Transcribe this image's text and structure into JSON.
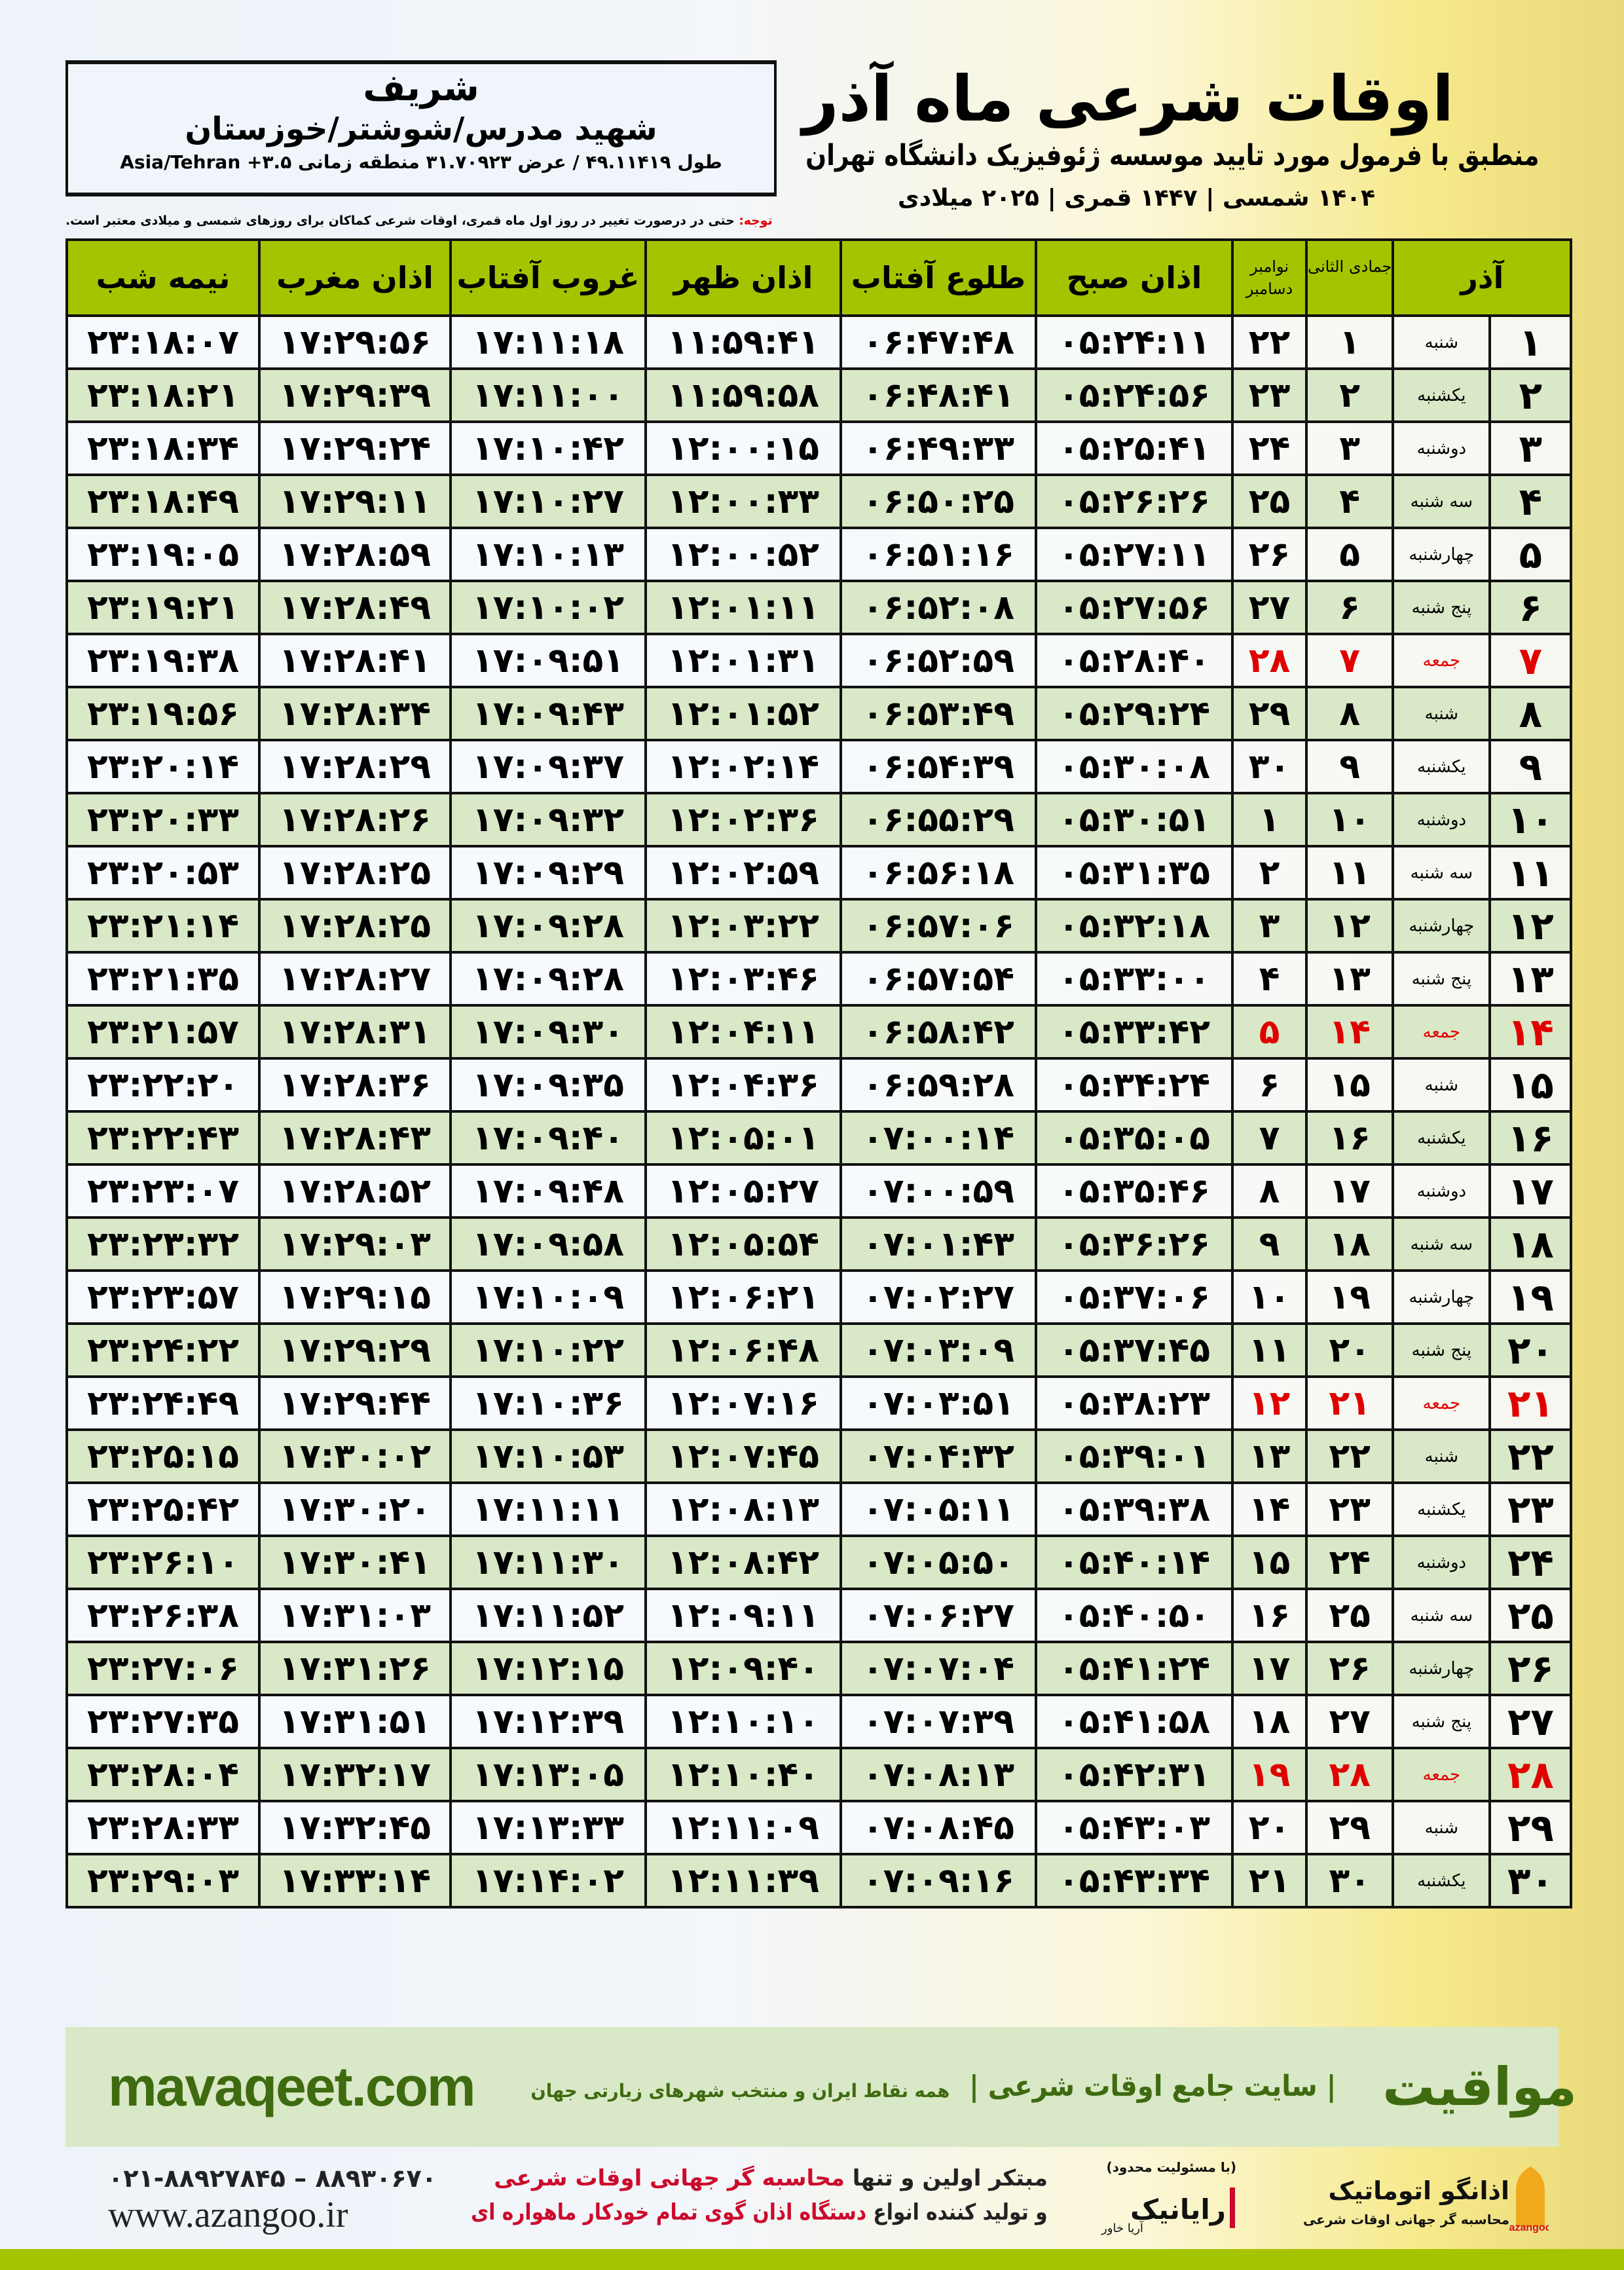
{
  "location": {
    "name": "شریف",
    "path": "شهید مدرس/شوشتر/خوزستان",
    "coords": "طول ۴۹.۱۱۴۱۹ / عرض ۳۱.۷۰۹۲۳ منطقه زمانی ۳.۵+ Asia/Tehran"
  },
  "header": {
    "title": "اوقات شرعی ماه آذر",
    "subtitle": "منطبق با فرمول مورد تایید موسسه ژئوفیزیک دانشگاه تهران",
    "dateline": "۱۴۰۴ شمسی | ۱۴۴۷ قمری | ۲۰۲۵ میلادی",
    "note_label": "توجه:",
    "note_text": " حتی در درصورت تغییر در روز اول ماه قمری، اوقات شرعی کماکان برای روزهای شمسی و میلادی معتبر است."
  },
  "table": {
    "columns": {
      "month": "آذر",
      "hijri": "جمادی الثانی",
      "greg_top": "نوامبر",
      "greg_bottom": "دسامبر",
      "fajr": "اذان صبح",
      "sunrise": "طلوع آفتاب",
      "dhuhr": "اذان ظهر",
      "sunset": "غروب آفتاب",
      "maghrib": "اذان مغرب",
      "midnight": "نیمه شب"
    },
    "rows": [
      {
        "day": "۱",
        "weekday": "شنبه",
        "hijri": "۱",
        "greg": "۲۲",
        "fajr": "۰۵:۲۴:۱۱",
        "sunrise": "۰۶:۴۷:۴۸",
        "dhuhr": "۱۱:۵۹:۴۱",
        "sunset": "۱۷:۱۱:۱۸",
        "maghrib": "۱۷:۲۹:۵۶",
        "midnight": "۲۳:۱۸:۰۷"
      },
      {
        "day": "۲",
        "weekday": "یکشنبه",
        "hijri": "۲",
        "greg": "۲۳",
        "fajr": "۰۵:۲۴:۵۶",
        "sunrise": "۰۶:۴۸:۴۱",
        "dhuhr": "۱۱:۵۹:۵۸",
        "sunset": "۱۷:۱۱:۰۰",
        "maghrib": "۱۷:۲۹:۳۹",
        "midnight": "۲۳:۱۸:۲۱"
      },
      {
        "day": "۳",
        "weekday": "دوشنبه",
        "hijri": "۳",
        "greg": "۲۴",
        "fajr": "۰۵:۲۵:۴۱",
        "sunrise": "۰۶:۴۹:۳۳",
        "dhuhr": "۱۲:۰۰:۱۵",
        "sunset": "۱۷:۱۰:۴۲",
        "maghrib": "۱۷:۲۹:۲۴",
        "midnight": "۲۳:۱۸:۳۴"
      },
      {
        "day": "۴",
        "weekday": "سه شنبه",
        "hijri": "۴",
        "greg": "۲۵",
        "fajr": "۰۵:۲۶:۲۶",
        "sunrise": "۰۶:۵۰:۲۵",
        "dhuhr": "۱۲:۰۰:۳۳",
        "sunset": "۱۷:۱۰:۲۷",
        "maghrib": "۱۷:۲۹:۱۱",
        "midnight": "۲۳:۱۸:۴۹"
      },
      {
        "day": "۵",
        "weekday": "چهارشنبه",
        "hijri": "۵",
        "greg": "۲۶",
        "fajr": "۰۵:۲۷:۱۱",
        "sunrise": "۰۶:۵۱:۱۶",
        "dhuhr": "۱۲:۰۰:۵۲",
        "sunset": "۱۷:۱۰:۱۳",
        "maghrib": "۱۷:۲۸:۵۹",
        "midnight": "۲۳:۱۹:۰۵"
      },
      {
        "day": "۶",
        "weekday": "پنج شنبه",
        "hijri": "۶",
        "greg": "۲۷",
        "fajr": "۰۵:۲۷:۵۶",
        "sunrise": "۰۶:۵۲:۰۸",
        "dhuhr": "۱۲:۰۱:۱۱",
        "sunset": "۱۷:۱۰:۰۲",
        "maghrib": "۱۷:۲۸:۴۹",
        "midnight": "۲۳:۱۹:۲۱"
      },
      {
        "day": "۷",
        "weekday": "جمعه",
        "hijri": "۷",
        "greg": "۲۸",
        "fajr": "۰۵:۲۸:۴۰",
        "sunrise": "۰۶:۵۲:۵۹",
        "dhuhr": "۱۲:۰۱:۳۱",
        "sunset": "۱۷:۰۹:۵۱",
        "maghrib": "۱۷:۲۸:۴۱",
        "midnight": "۲۳:۱۹:۳۸",
        "friday": true
      },
      {
        "day": "۸",
        "weekday": "شنبه",
        "hijri": "۸",
        "greg": "۲۹",
        "fajr": "۰۵:۲۹:۲۴",
        "sunrise": "۰۶:۵۳:۴۹",
        "dhuhr": "۱۲:۰۱:۵۲",
        "sunset": "۱۷:۰۹:۴۳",
        "maghrib": "۱۷:۲۸:۳۴",
        "midnight": "۲۳:۱۹:۵۶"
      },
      {
        "day": "۹",
        "weekday": "یکشنبه",
        "hijri": "۹",
        "greg": "۳۰",
        "fajr": "۰۵:۳۰:۰۸",
        "sunrise": "۰۶:۵۴:۳۹",
        "dhuhr": "۱۲:۰۲:۱۴",
        "sunset": "۱۷:۰۹:۳۷",
        "maghrib": "۱۷:۲۸:۲۹",
        "midnight": "۲۳:۲۰:۱۴"
      },
      {
        "day": "۱۰",
        "weekday": "دوشنبه",
        "hijri": "۱۰",
        "greg": "۱",
        "fajr": "۰۵:۳۰:۵۱",
        "sunrise": "۰۶:۵۵:۲۹",
        "dhuhr": "۱۲:۰۲:۳۶",
        "sunset": "۱۷:۰۹:۳۲",
        "maghrib": "۱۷:۲۸:۲۶",
        "midnight": "۲۳:۲۰:۳۳"
      },
      {
        "day": "۱۱",
        "weekday": "سه شنبه",
        "hijri": "۱۱",
        "greg": "۲",
        "fajr": "۰۵:۳۱:۳۵",
        "sunrise": "۰۶:۵۶:۱۸",
        "dhuhr": "۱۲:۰۲:۵۹",
        "sunset": "۱۷:۰۹:۲۹",
        "maghrib": "۱۷:۲۸:۲۵",
        "midnight": "۲۳:۲۰:۵۳"
      },
      {
        "day": "۱۲",
        "weekday": "چهارشنبه",
        "hijri": "۱۲",
        "greg": "۳",
        "fajr": "۰۵:۳۲:۱۸",
        "sunrise": "۰۶:۵۷:۰۶",
        "dhuhr": "۱۲:۰۳:۲۲",
        "sunset": "۱۷:۰۹:۲۸",
        "maghrib": "۱۷:۲۸:۲۵",
        "midnight": "۲۳:۲۱:۱۴"
      },
      {
        "day": "۱۳",
        "weekday": "پنج شنبه",
        "hijri": "۱۳",
        "greg": "۴",
        "fajr": "۰۵:۳۳:۰۰",
        "sunrise": "۰۶:۵۷:۵۴",
        "dhuhr": "۱۲:۰۳:۴۶",
        "sunset": "۱۷:۰۹:۲۸",
        "maghrib": "۱۷:۲۸:۲۷",
        "midnight": "۲۳:۲۱:۳۵"
      },
      {
        "day": "۱۴",
        "weekday": "جمعه",
        "hijri": "۱۴",
        "greg": "۵",
        "fajr": "۰۵:۳۳:۴۲",
        "sunrise": "۰۶:۵۸:۴۲",
        "dhuhr": "۱۲:۰۴:۱۱",
        "sunset": "۱۷:۰۹:۳۰",
        "maghrib": "۱۷:۲۸:۳۱",
        "midnight": "۲۳:۲۱:۵۷",
        "friday": true
      },
      {
        "day": "۱۵",
        "weekday": "شنبه",
        "hijri": "۱۵",
        "greg": "۶",
        "fajr": "۰۵:۳۴:۲۴",
        "sunrise": "۰۶:۵۹:۲۸",
        "dhuhr": "۱۲:۰۴:۳۶",
        "sunset": "۱۷:۰۹:۳۵",
        "maghrib": "۱۷:۲۸:۳۶",
        "midnight": "۲۳:۲۲:۲۰"
      },
      {
        "day": "۱۶",
        "weekday": "یکشنبه",
        "hijri": "۱۶",
        "greg": "۷",
        "fajr": "۰۵:۳۵:۰۵",
        "sunrise": "۰۷:۰۰:۱۴",
        "dhuhr": "۱۲:۰۵:۰۱",
        "sunset": "۱۷:۰۹:۴۰",
        "maghrib": "۱۷:۲۸:۴۳",
        "midnight": "۲۳:۲۲:۴۳"
      },
      {
        "day": "۱۷",
        "weekday": "دوشنبه",
        "hijri": "۱۷",
        "greg": "۸",
        "fajr": "۰۵:۳۵:۴۶",
        "sunrise": "۰۷:۰۰:۵۹",
        "dhuhr": "۱۲:۰۵:۲۷",
        "sunset": "۱۷:۰۹:۴۸",
        "maghrib": "۱۷:۲۸:۵۲",
        "midnight": "۲۳:۲۳:۰۷"
      },
      {
        "day": "۱۸",
        "weekday": "سه شنبه",
        "hijri": "۱۸",
        "greg": "۹",
        "fajr": "۰۵:۳۶:۲۶",
        "sunrise": "۰۷:۰۱:۴۳",
        "dhuhr": "۱۲:۰۵:۵۴",
        "sunset": "۱۷:۰۹:۵۸",
        "maghrib": "۱۷:۲۹:۰۳",
        "midnight": "۲۳:۲۳:۳۲"
      },
      {
        "day": "۱۹",
        "weekday": "چهارشنبه",
        "hijri": "۱۹",
        "greg": "۱۰",
        "fajr": "۰۵:۳۷:۰۶",
        "sunrise": "۰۷:۰۲:۲۷",
        "dhuhr": "۱۲:۰۶:۲۱",
        "sunset": "۱۷:۱۰:۰۹",
        "maghrib": "۱۷:۲۹:۱۵",
        "midnight": "۲۳:۲۳:۵۷"
      },
      {
        "day": "۲۰",
        "weekday": "پنج شنبه",
        "hijri": "۲۰",
        "greg": "۱۱",
        "fajr": "۰۵:۳۷:۴۵",
        "sunrise": "۰۷:۰۳:۰۹",
        "dhuhr": "۱۲:۰۶:۴۸",
        "sunset": "۱۷:۱۰:۲۲",
        "maghrib": "۱۷:۲۹:۲۹",
        "midnight": "۲۳:۲۴:۲۲"
      },
      {
        "day": "۲۱",
        "weekday": "جمعه",
        "hijri": "۲۱",
        "greg": "۱۲",
        "fajr": "۰۵:۳۸:۲۳",
        "sunrise": "۰۷:۰۳:۵۱",
        "dhuhr": "۱۲:۰۷:۱۶",
        "sunset": "۱۷:۱۰:۳۶",
        "maghrib": "۱۷:۲۹:۴۴",
        "midnight": "۲۳:۲۴:۴۹",
        "friday": true
      },
      {
        "day": "۲۲",
        "weekday": "شنبه",
        "hijri": "۲۲",
        "greg": "۱۳",
        "fajr": "۰۵:۳۹:۰۱",
        "sunrise": "۰۷:۰۴:۳۲",
        "dhuhr": "۱۲:۰۷:۴۵",
        "sunset": "۱۷:۱۰:۵۳",
        "maghrib": "۱۷:۳۰:۰۲",
        "midnight": "۲۳:۲۵:۱۵"
      },
      {
        "day": "۲۳",
        "weekday": "یکشنبه",
        "hijri": "۲۳",
        "greg": "۱۴",
        "fajr": "۰۵:۳۹:۳۸",
        "sunrise": "۰۷:۰۵:۱۱",
        "dhuhr": "۱۲:۰۸:۱۳",
        "sunset": "۱۷:۱۱:۱۱",
        "maghrib": "۱۷:۳۰:۲۰",
        "midnight": "۲۳:۲۵:۴۲"
      },
      {
        "day": "۲۴",
        "weekday": "دوشنبه",
        "hijri": "۲۴",
        "greg": "۱۵",
        "fajr": "۰۵:۴۰:۱۴",
        "sunrise": "۰۷:۰۵:۵۰",
        "dhuhr": "۱۲:۰۸:۴۲",
        "sunset": "۱۷:۱۱:۳۰",
        "maghrib": "۱۷:۳۰:۴۱",
        "midnight": "۲۳:۲۶:۱۰"
      },
      {
        "day": "۲۵",
        "weekday": "سه شنبه",
        "hijri": "۲۵",
        "greg": "۱۶",
        "fajr": "۰۵:۴۰:۵۰",
        "sunrise": "۰۷:۰۶:۲۷",
        "dhuhr": "۱۲:۰۹:۱۱",
        "sunset": "۱۷:۱۱:۵۲",
        "maghrib": "۱۷:۳۱:۰۳",
        "midnight": "۲۳:۲۶:۳۸"
      },
      {
        "day": "۲۶",
        "weekday": "چهارشنبه",
        "hijri": "۲۶",
        "greg": "۱۷",
        "fajr": "۰۵:۴۱:۲۴",
        "sunrise": "۰۷:۰۷:۰۴",
        "dhuhr": "۱۲:۰۹:۴۰",
        "sunset": "۱۷:۱۲:۱۵",
        "maghrib": "۱۷:۳۱:۲۶",
        "midnight": "۲۳:۲۷:۰۶"
      },
      {
        "day": "۲۷",
        "weekday": "پنج شنبه",
        "hijri": "۲۷",
        "greg": "۱۸",
        "fajr": "۰۵:۴۱:۵۸",
        "sunrise": "۰۷:۰۷:۳۹",
        "dhuhr": "۱۲:۱۰:۱۰",
        "sunset": "۱۷:۱۲:۳۹",
        "maghrib": "۱۷:۳۱:۵۱",
        "midnight": "۲۳:۲۷:۳۵"
      },
      {
        "day": "۲۸",
        "weekday": "جمعه",
        "hijri": "۲۸",
        "greg": "۱۹",
        "fajr": "۰۵:۴۲:۳۱",
        "sunrise": "۰۷:۰۸:۱۳",
        "dhuhr": "۱۲:۱۰:۴۰",
        "sunset": "۱۷:۱۳:۰۵",
        "maghrib": "۱۷:۳۲:۱۷",
        "midnight": "۲۳:۲۸:۰۴",
        "friday": true
      },
      {
        "day": "۲۹",
        "weekday": "شنبه",
        "hijri": "۲۹",
        "greg": "۲۰",
        "fajr": "۰۵:۴۳:۰۳",
        "sunrise": "۰۷:۰۸:۴۵",
        "dhuhr": "۱۲:۱۱:۰۹",
        "sunset": "۱۷:۱۳:۳۳",
        "maghrib": "۱۷:۳۲:۴۵",
        "midnight": "۲۳:۲۸:۳۳"
      },
      {
        "day": "۳۰",
        "weekday": "یکشنبه",
        "hijri": "۳۰",
        "greg": "۲۱",
        "fajr": "۰۵:۴۳:۳۴",
        "sunrise": "۰۷:۰۹:۱۶",
        "dhuhr": "۱۲:۱۱:۳۹",
        "sunset": "۱۷:۱۴:۰۲",
        "maghrib": "۱۷:۳۳:۱۴",
        "midnight": "۲۳:۲۹:۰۳"
      }
    ]
  },
  "footer": {
    "brand": "مواقیت",
    "brand_sub": "| سایت جامع اوقات شرعی |",
    "brand_sub2": "همه نقاط ایران و منتخب شهرهای زیارتی جهان",
    "site": "mavaqeet.com",
    "promo1_a": "مبتکر اولین و تنها ",
    "promo1_b": "محاسبه گر جهانی اوقات شرعی",
    "promo2_a": "و تولید کننده انواع ",
    "promo2_b": "دستگاه اذان گوی تمام خودکار ماهواره ای",
    "phone": "۰۲۱-۸۸۹۲۷۸۴۵ – ۸۸۹۳۰۶۷۰",
    "web": "www.azangoo.ir",
    "logo1_text": "اذانگو اتوماتیک",
    "logo1_sub": "محاسبه گر جهانی اوقات شرعی",
    "logo1_latin": "azangoo",
    "logo2_text": "رایانیک",
    "logo2_sub": "آریا خاور",
    "logo2_tag": "(با مسئولیت محدود)"
  },
  "colors": {
    "header_green": "#a5c400",
    "row_green": "#d9e8c6",
    "friday_red": "#e00000",
    "brand_green": "#3e6b10"
  }
}
